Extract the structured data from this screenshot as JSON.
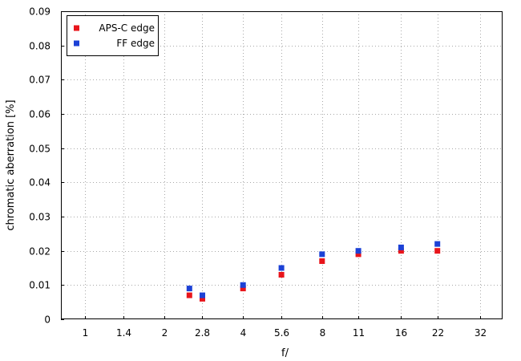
{
  "chart_data": {
    "type": "scatter",
    "title": "",
    "xlabel": "f/",
    "ylabel": "chromatic aberration [%]",
    "x_scale": "log2",
    "x_ticks": [
      "1",
      "1.4",
      "2",
      "2.8",
      "4",
      "5.6",
      "8",
      "11",
      "16",
      "22",
      "32"
    ],
    "ylim": [
      0,
      0.09
    ],
    "y_ticks": [
      "0",
      "0.01",
      "0.02",
      "0.03",
      "0.04",
      "0.05",
      "0.06",
      "0.07",
      "0.08",
      "0.09"
    ],
    "grid": true,
    "legend_position": "top-left",
    "series": [
      {
        "name": "APS-C edge",
        "color": "#e8151b",
        "x": [
          2.5,
          2.8,
          4,
          5.6,
          8,
          11,
          16,
          22
        ],
        "y": [
          0.007,
          0.006,
          0.009,
          0.013,
          0.017,
          0.019,
          0.02,
          0.02
        ]
      },
      {
        "name": "FF edge",
        "color": "#1c41d6",
        "x": [
          2.5,
          2.8,
          4,
          5.6,
          8,
          11,
          16,
          22
        ],
        "y": [
          0.009,
          0.007,
          0.01,
          0.015,
          0.019,
          0.02,
          0.021,
          0.022
        ]
      }
    ]
  }
}
